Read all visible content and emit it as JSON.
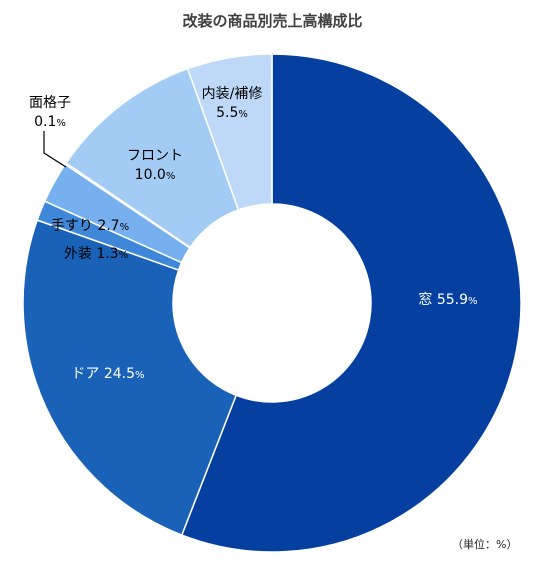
{
  "chart_data": {
    "type": "pie",
    "title": "改装の商品別売上高構成比",
    "unit_note": "（単位：%）",
    "slices": [
      {
        "name": "窓",
        "value": 55.9,
        "value_label": "55.9",
        "color": "#0540A0"
      },
      {
        "name": "ドア",
        "value": 24.5,
        "value_label": "24.5",
        "color": "#1A62B8"
      },
      {
        "name": "外装",
        "value": 1.3,
        "value_label": "1.3",
        "color": "#3F88D9"
      },
      {
        "name": "手すり",
        "value": 2.7,
        "value_label": "2.7",
        "color": "#76B0EE"
      },
      {
        "name": "面格子",
        "value": 0.1,
        "value_label": "0.1",
        "color": "#8DBDF0"
      },
      {
        "name": "フロント",
        "value": 10.0,
        "value_label": "10.0",
        "color": "#A3CCF4"
      },
      {
        "name": "内装/補修",
        "value": 5.5,
        "value_label": "5.5",
        "color": "#BDD9F7"
      }
    ],
    "start": "12 o'clock",
    "direction": "clockwise",
    "legend": "none"
  }
}
